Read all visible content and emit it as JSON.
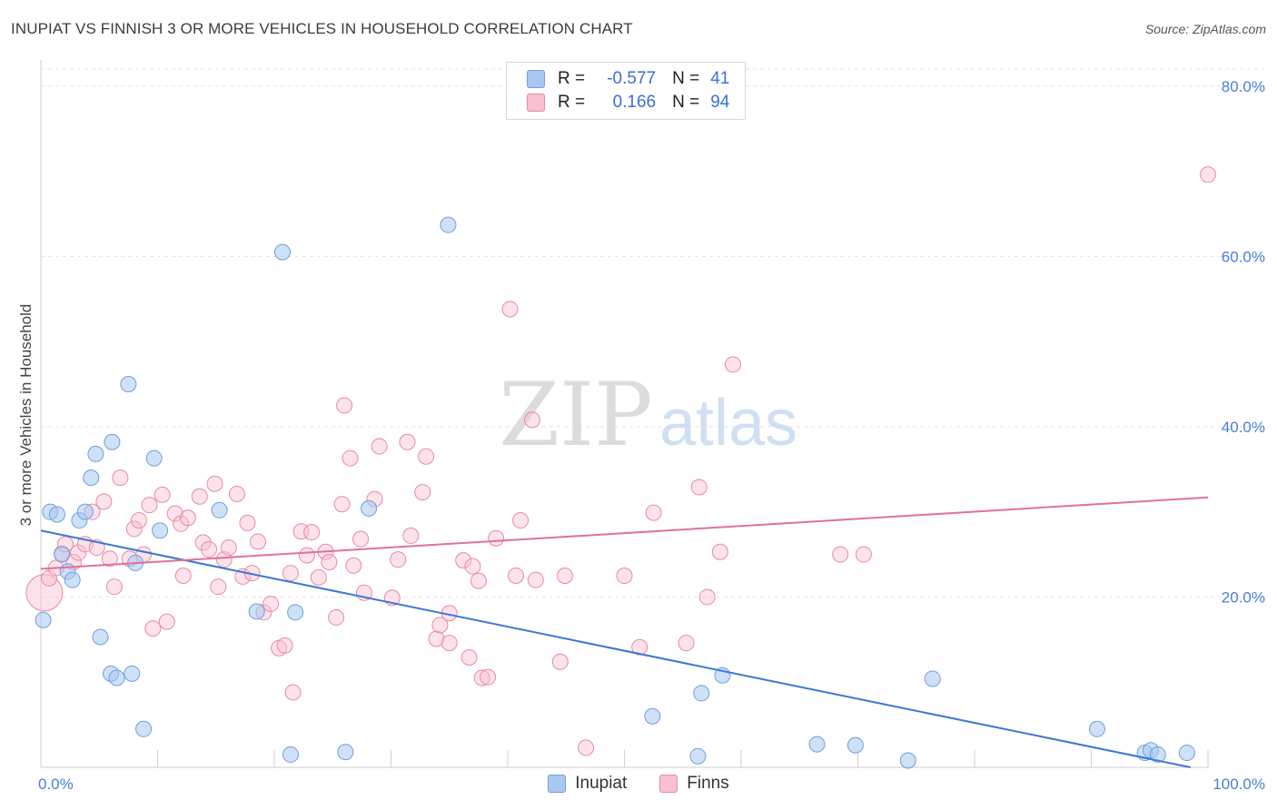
{
  "title": "INUPIAT VS FINNISH 3 OR MORE VEHICLES IN HOUSEHOLD CORRELATION CHART",
  "source": "Source: ZipAtlas.com",
  "watermark": {
    "zip": "ZIP",
    "atlas": "atlas"
  },
  "legend_top": {
    "rows": [
      {
        "r_label": "R =",
        "r_value": "-0.577",
        "n_label": "N =",
        "n_value": "41",
        "color": "#a9c8f0",
        "border": "#6f9fe0"
      },
      {
        "r_label": "R =",
        "r_value": "0.166",
        "n_label": "N =",
        "n_value": "94",
        "color": "#f8c0d0",
        "border": "#e88aa6"
      }
    ]
  },
  "legend_bottom": {
    "inupiat": "Inupiat",
    "finns": "Finns"
  },
  "colors": {
    "inupiat_fill": "rgba(168,200,240,0.55)",
    "inupiat_stroke": "#6f9fe0",
    "inupiat_line": "#3a78d8",
    "finns_fill": "rgba(248,190,208,0.45)",
    "finns_stroke": "#e88aa6",
    "finns_line": "#e0709a",
    "tick_text": "#4a7fd6",
    "grid": "#e3e3e3"
  },
  "chart_data": {
    "type": "scatter",
    "title": "INUPIAT VS FINNISH 3 OR MORE VEHICLES IN HOUSEHOLD CORRELATION CHART",
    "xlabel": "",
    "ylabel": "3 or more Vehicles in Household",
    "xlim": [
      0,
      100
    ],
    "ylim": [
      0,
      82
    ],
    "x_tick_labels": [
      {
        "value": 0,
        "label": "0.0%"
      },
      {
        "value": 100,
        "label": "100.0%"
      }
    ],
    "y_tick_labels": [
      {
        "value": 20,
        "label": "20.0%"
      },
      {
        "value": 40,
        "label": "40.0%"
      },
      {
        "value": 60,
        "label": "60.0%"
      },
      {
        "value": 80,
        "label": "80.0%"
      }
    ],
    "x_minor_ticks": [
      10,
      20,
      30,
      40,
      50,
      60,
      70,
      80,
      90,
      100
    ],
    "series": [
      {
        "name": "Inupiat",
        "r": -0.577,
        "n": 41,
        "trend": [
          [
            0,
            27.8
          ],
          [
            98.5,
            0
          ]
        ],
        "points": [
          [
            0.2,
            17.3
          ],
          [
            0.8,
            30.0
          ],
          [
            1.4,
            29.7
          ],
          [
            1.8,
            25.0
          ],
          [
            2.3,
            23.0
          ],
          [
            2.7,
            22.0
          ],
          [
            3.3,
            29.0
          ],
          [
            3.8,
            30.0
          ],
          [
            4.3,
            34.0
          ],
          [
            4.7,
            36.8
          ],
          [
            5.1,
            15.3
          ],
          [
            6.1,
            38.2
          ],
          [
            6.0,
            11.0
          ],
          [
            6.5,
            10.5
          ],
          [
            7.5,
            45.0
          ],
          [
            7.8,
            11.0
          ],
          [
            8.1,
            24.0
          ],
          [
            8.8,
            4.5
          ],
          [
            9.7,
            36.3
          ],
          [
            10.2,
            27.8
          ],
          [
            15.3,
            30.2
          ],
          [
            18.5,
            18.3
          ],
          [
            20.7,
            60.5
          ],
          [
            21.4,
            1.5
          ],
          [
            21.8,
            18.2
          ],
          [
            26.1,
            1.8
          ],
          [
            28.1,
            30.4
          ],
          [
            34.9,
            63.7
          ],
          [
            52.4,
            6.0
          ],
          [
            56.3,
            1.3
          ],
          [
            56.6,
            8.7
          ],
          [
            58.4,
            10.8
          ],
          [
            66.5,
            2.7
          ],
          [
            69.8,
            2.6
          ],
          [
            74.3,
            0.8
          ],
          [
            76.4,
            10.4
          ],
          [
            90.5,
            4.5
          ],
          [
            94.6,
            1.7
          ],
          [
            95.1,
            2.0
          ],
          [
            95.7,
            1.5
          ],
          [
            98.2,
            1.7
          ]
        ]
      },
      {
        "name": "Finns",
        "r": 0.166,
        "n": 94,
        "trend": [
          [
            0,
            23.3
          ],
          [
            100,
            31.7
          ]
        ],
        "points": [
          [
            0.3,
            20.5
          ],
          [
            0.7,
            22.2
          ],
          [
            1.3,
            23.4
          ],
          [
            1.8,
            25.1
          ],
          [
            2.1,
            26.2
          ],
          [
            2.8,
            24.1
          ],
          [
            3.2,
            25.2
          ],
          [
            3.8,
            26.2
          ],
          [
            4.4,
            30.0
          ],
          [
            4.8,
            25.8
          ],
          [
            5.4,
            31.2
          ],
          [
            5.9,
            24.5
          ],
          [
            6.3,
            21.2
          ],
          [
            6.8,
            34.0
          ],
          [
            7.6,
            24.5
          ],
          [
            8.0,
            28.0
          ],
          [
            8.4,
            29.0
          ],
          [
            8.8,
            25.0
          ],
          [
            9.3,
            30.8
          ],
          [
            9.6,
            16.3
          ],
          [
            10.4,
            32.0
          ],
          [
            10.8,
            17.1
          ],
          [
            11.5,
            29.8
          ],
          [
            12.0,
            28.6
          ],
          [
            12.2,
            22.5
          ],
          [
            12.6,
            29.3
          ],
          [
            13.6,
            31.8
          ],
          [
            13.9,
            26.4
          ],
          [
            14.4,
            25.6
          ],
          [
            14.9,
            33.3
          ],
          [
            15.2,
            21.2
          ],
          [
            15.7,
            24.4
          ],
          [
            16.1,
            25.8
          ],
          [
            16.8,
            32.1
          ],
          [
            17.3,
            22.4
          ],
          [
            17.7,
            28.7
          ],
          [
            18.1,
            22.8
          ],
          [
            18.6,
            26.5
          ],
          [
            19.1,
            18.2
          ],
          [
            19.7,
            19.2
          ],
          [
            20.4,
            14.0
          ],
          [
            20.9,
            14.3
          ],
          [
            21.4,
            22.8
          ],
          [
            21.6,
            8.8
          ],
          [
            22.3,
            27.7
          ],
          [
            22.8,
            24.9
          ],
          [
            23.2,
            27.6
          ],
          [
            23.8,
            22.3
          ],
          [
            24.4,
            25.3
          ],
          [
            24.7,
            24.1
          ],
          [
            25.3,
            17.6
          ],
          [
            25.8,
            30.9
          ],
          [
            26.0,
            42.5
          ],
          [
            26.5,
            36.3
          ],
          [
            26.8,
            23.7
          ],
          [
            27.4,
            26.8
          ],
          [
            27.7,
            20.5
          ],
          [
            28.6,
            31.5
          ],
          [
            29.0,
            37.7
          ],
          [
            30.1,
            19.9
          ],
          [
            30.6,
            24.4
          ],
          [
            31.4,
            38.2
          ],
          [
            31.7,
            27.2
          ],
          [
            32.7,
            32.3
          ],
          [
            33.0,
            36.5
          ],
          [
            33.9,
            15.1
          ],
          [
            34.2,
            16.7
          ],
          [
            35.0,
            14.6
          ],
          [
            35.0,
            18.1
          ],
          [
            36.2,
            24.3
          ],
          [
            36.7,
            12.9
          ],
          [
            37.0,
            23.6
          ],
          [
            37.5,
            21.9
          ],
          [
            37.8,
            10.5
          ],
          [
            38.3,
            10.6
          ],
          [
            39.0,
            26.9
          ],
          [
            40.2,
            53.8
          ],
          [
            40.7,
            22.5
          ],
          [
            41.1,
            29.0
          ],
          [
            42.1,
            40.8
          ],
          [
            42.4,
            22.0
          ],
          [
            44.5,
            12.4
          ],
          [
            44.9,
            22.5
          ],
          [
            46.7,
            2.3
          ],
          [
            50.0,
            22.5
          ],
          [
            51.3,
            14.1
          ],
          [
            52.5,
            29.9
          ],
          [
            55.3,
            14.6
          ],
          [
            56.4,
            32.9
          ],
          [
            57.1,
            20.0
          ],
          [
            58.2,
            25.3
          ],
          [
            59.3,
            47.3
          ],
          [
            68.5,
            25.0
          ],
          [
            70.5,
            25.0
          ],
          [
            100.0,
            69.6
          ]
        ]
      }
    ]
  }
}
